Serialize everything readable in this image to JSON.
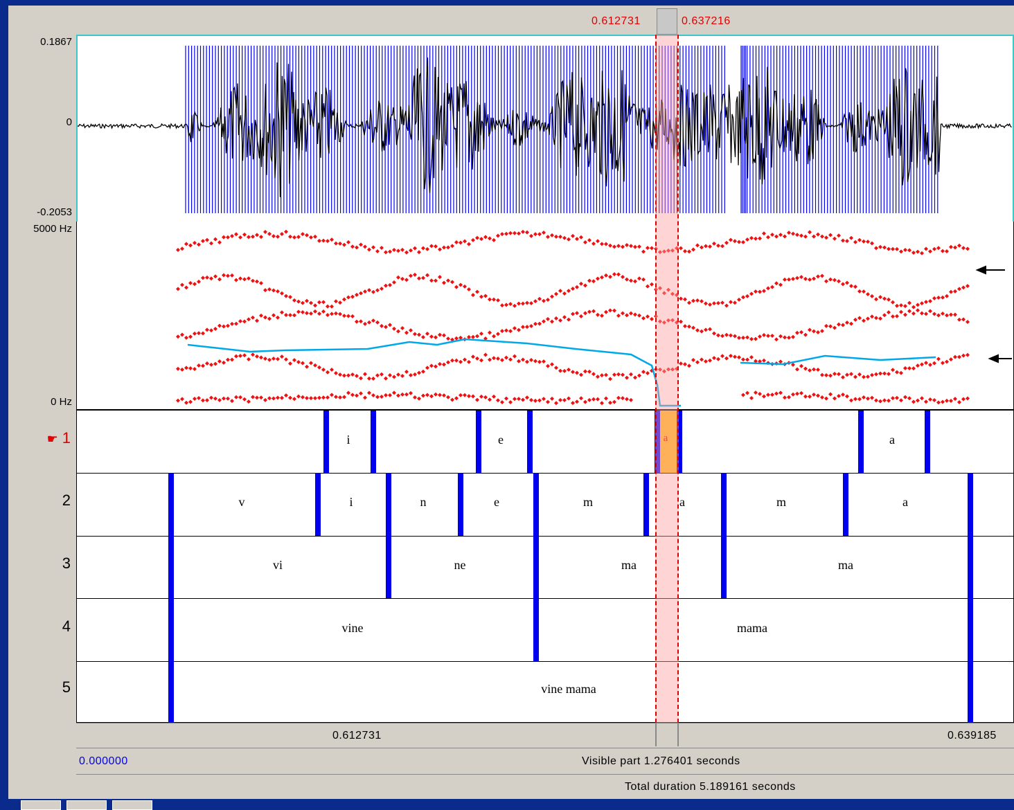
{
  "selection": {
    "start": "0.612731",
    "end": "0.637216"
  },
  "waveform": {
    "y_max": "0.1867",
    "y_zero": "0",
    "y_min": "-0.2053"
  },
  "spectrogram": {
    "y_max": "5000 Hz",
    "y_min": "0 Hz"
  },
  "tiers": [
    {
      "number": "1",
      "active": true,
      "hand_icon": "pointing-hand-icon",
      "labels": [
        "i",
        "e",
        "a",
        "a"
      ]
    },
    {
      "number": "2",
      "active": false,
      "labels": [
        "v",
        "i",
        "n",
        "e",
        "m",
        "a",
        "m",
        "a"
      ]
    },
    {
      "number": "3",
      "active": false,
      "labels": [
        "vi",
        "ne",
        "ma",
        "ma"
      ]
    },
    {
      "number": "4",
      "active": false,
      "labels": [
        "vine",
        "mama"
      ]
    },
    {
      "number": "5",
      "active": false,
      "labels": [
        "vine mama"
      ]
    }
  ],
  "time_axis": {
    "left": "0.612731",
    "right": "0.639185"
  },
  "visible_bar": {
    "start": "0.000000",
    "text": "Visible part 1.276401 seconds"
  },
  "total_bar": {
    "text": "Total duration 5.189161 seconds"
  },
  "colors": {
    "background": "#0a2a8c",
    "boundary": "#0000ee",
    "formant": "#ee1111",
    "pitch": "#00a8e8",
    "selection": "#ffc8c8",
    "interval_highlight": "#ffc020"
  }
}
